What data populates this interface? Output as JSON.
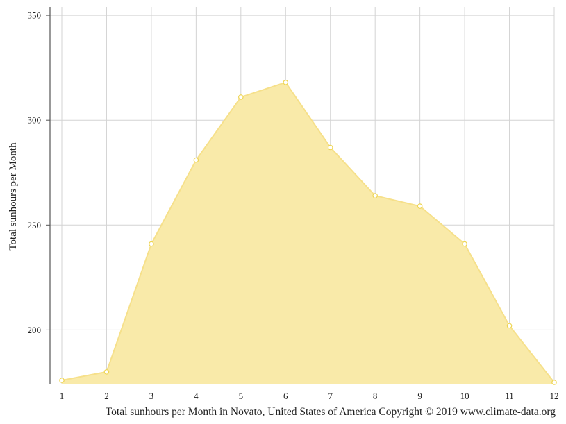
{
  "chart_data": {
    "type": "area",
    "x": [
      1,
      2,
      3,
      4,
      5,
      6,
      7,
      8,
      9,
      10,
      11,
      12
    ],
    "series": [
      {
        "values": [
          176,
          180,
          241,
          281,
          311,
          318,
          287,
          264,
          259,
          241,
          202,
          175
        ]
      }
    ],
    "ylabel": "Total sunhours per Month",
    "caption": "Total sunhours per Month in Novato, United States of America Copyright © 2019 www.climate-data.org",
    "ylim": [
      174,
      354
    ],
    "yticks": [
      200,
      250,
      300,
      350
    ],
    "xticks": [
      1,
      2,
      3,
      4,
      5,
      6,
      7,
      8,
      9,
      10,
      11,
      12
    ],
    "grid": true,
    "colors": {
      "fill": "#f9eaa9",
      "line": "#f6e08a",
      "marker_stroke": "#eed552",
      "grid": "#d3d3d3",
      "axis": "#555555"
    }
  }
}
